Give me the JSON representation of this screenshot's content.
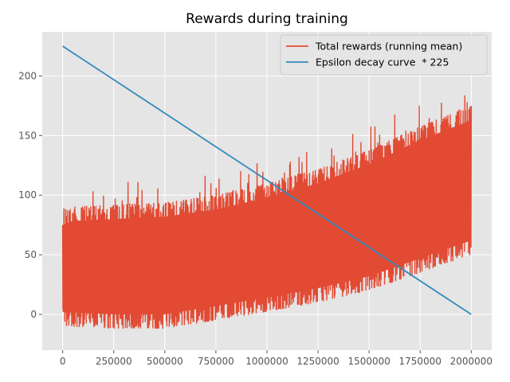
{
  "chart_data": {
    "type": "line",
    "title": "Rewards during training",
    "xlabel": "",
    "ylabel": "",
    "xlim": [
      -100000,
      2100000
    ],
    "ylim": [
      -30,
      237
    ],
    "x_ticks": [
      0,
      250000,
      500000,
      750000,
      1000000,
      1250000,
      1500000,
      1750000,
      2000000
    ],
    "x_tick_labels": [
      "0",
      "250000",
      "500000",
      "750000",
      "1000000",
      "1250000",
      "1500000",
      "1750000",
      "2000000"
    ],
    "y_ticks": [
      0,
      50,
      100,
      150,
      200
    ],
    "y_tick_labels": [
      "0",
      "50",
      "100",
      "150",
      "200"
    ],
    "grid": true,
    "legend_position": "top-right",
    "series": [
      {
        "name": "Total rewards (running mean)",
        "color": "#E24A33",
        "style": "noisy-band",
        "x": [
          0,
          250000,
          500000,
          750000,
          1000000,
          1250000,
          1500000,
          1750000,
          2000000
        ],
        "upper": [
          90,
          92,
          94,
          100,
          110,
          122,
          138,
          158,
          175
        ],
        "lower": [
          -10,
          -12,
          -12,
          -5,
          2,
          10,
          20,
          35,
          50
        ]
      },
      {
        "name": "Epsilon decay curve  * 225",
        "color": "#348ABD",
        "style": "line",
        "x": [
          0,
          2000000
        ],
        "y": [
          225,
          0
        ]
      }
    ]
  }
}
